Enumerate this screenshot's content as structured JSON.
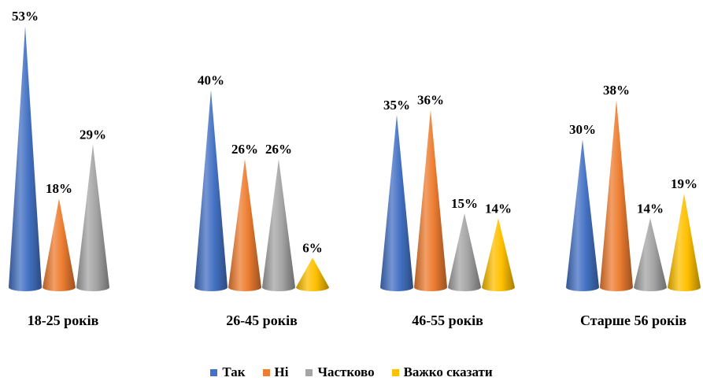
{
  "chart_data": {
    "type": "bar",
    "style": "3d-cone",
    "categories": [
      "18-25 років",
      "26-45 років",
      "46-55 років",
      "Старше 56 років"
    ],
    "series": [
      {
        "name": "Так",
        "color": "#4472C4",
        "values": [
          53,
          40,
          35,
          30
        ]
      },
      {
        "name": "Ні",
        "color": "#ED7D31",
        "values": [
          18,
          26,
          36,
          38
        ]
      },
      {
        "name": "Частково",
        "color": "#A5A5A5",
        "values": [
          29,
          26,
          15,
          14
        ]
      },
      {
        "name": "Важко сказати",
        "color": "#FFC000",
        "values": [
          null,
          6,
          14,
          19
        ]
      }
    ],
    "value_suffix": "%",
    "ylim": [
      0,
      53
    ],
    "grid": false,
    "legend_position": "bottom"
  }
}
